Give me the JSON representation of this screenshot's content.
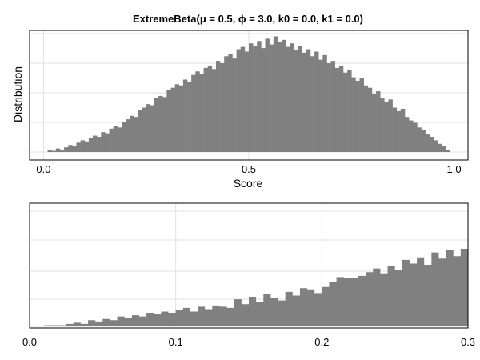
{
  "chart_data": [
    {
      "type": "histogram",
      "title": "ExtremeBeta(μ = 0.5, ϕ =  3.0, k0 = 0.0, k1 = 0.0)",
      "xlabel": "Score",
      "ylabel": "Distribution",
      "xlim": [
        0.0,
        1.0
      ],
      "xticks": [
        "0.0",
        "0.5",
        "1.0"
      ],
      "yticks_labeled": false,
      "grid": true,
      "color": "#808080",
      "bins": {
        "x_start": 0.01,
        "x_end": 0.99,
        "count": 98,
        "relative_heights": [
          0.02,
          0.01,
          0.03,
          0.02,
          0.04,
          0.06,
          0.05,
          0.08,
          0.1,
          0.09,
          0.12,
          0.14,
          0.13,
          0.17,
          0.16,
          0.2,
          0.22,
          0.21,
          0.26,
          0.28,
          0.31,
          0.3,
          0.36,
          0.38,
          0.41,
          0.4,
          0.46,
          0.48,
          0.47,
          0.53,
          0.55,
          0.58,
          0.57,
          0.62,
          0.6,
          0.66,
          0.69,
          0.67,
          0.72,
          0.74,
          0.71,
          0.78,
          0.76,
          0.82,
          0.84,
          0.8,
          0.88,
          0.9,
          0.86,
          0.93,
          0.91,
          0.95,
          0.89,
          0.97,
          0.92,
          0.99,
          0.94,
          0.96,
          0.9,
          0.93,
          0.87,
          0.91,
          0.85,
          0.88,
          0.82,
          0.86,
          0.79,
          0.83,
          0.76,
          0.78,
          0.72,
          0.74,
          0.68,
          0.7,
          0.64,
          0.61,
          0.63,
          0.57,
          0.55,
          0.5,
          0.52,
          0.46,
          0.43,
          0.45,
          0.38,
          0.35,
          0.37,
          0.3,
          0.27,
          0.25,
          0.21,
          0.19,
          0.15,
          0.13,
          0.1,
          0.07,
          0.05,
          0.02
        ]
      }
    },
    {
      "type": "area",
      "title": "",
      "xlabel": "",
      "ylabel": "",
      "xlim": [
        0.0,
        0.3
      ],
      "xticks": [
        "0.0",
        "0.1",
        "0.2",
        "0.3"
      ],
      "yticks_labeled": false,
      "grid": true,
      "color": "#808080",
      "x": [
        0.01,
        0.015,
        0.02,
        0.025,
        0.03,
        0.035,
        0.04,
        0.045,
        0.05,
        0.055,
        0.06,
        0.065,
        0.07,
        0.075,
        0.08,
        0.085,
        0.09,
        0.095,
        0.1,
        0.105,
        0.11,
        0.115,
        0.12,
        0.125,
        0.13,
        0.135,
        0.14,
        0.145,
        0.15,
        0.155,
        0.16,
        0.165,
        0.17,
        0.175,
        0.18,
        0.185,
        0.19,
        0.195,
        0.2,
        0.205,
        0.21,
        0.215,
        0.22,
        0.225,
        0.23,
        0.235,
        0.24,
        0.245,
        0.25,
        0.255,
        0.26,
        0.265,
        0.27,
        0.275,
        0.28,
        0.285,
        0.29,
        0.295,
        0.3
      ],
      "y": [
        0.01,
        0.01,
        0.01,
        0.02,
        0.03,
        0.02,
        0.05,
        0.04,
        0.06,
        0.05,
        0.08,
        0.07,
        0.09,
        0.08,
        0.11,
        0.1,
        0.12,
        0.11,
        0.13,
        0.15,
        0.12,
        0.16,
        0.14,
        0.17,
        0.16,
        0.15,
        0.22,
        0.18,
        0.24,
        0.2,
        0.26,
        0.23,
        0.21,
        0.28,
        0.25,
        0.31,
        0.3,
        0.27,
        0.32,
        0.36,
        0.4,
        0.39,
        0.39,
        0.41,
        0.44,
        0.47,
        0.43,
        0.49,
        0.46,
        0.54,
        0.51,
        0.56,
        0.5,
        0.6,
        0.55,
        0.62,
        0.57,
        0.63,
        0.7
      ]
    }
  ]
}
